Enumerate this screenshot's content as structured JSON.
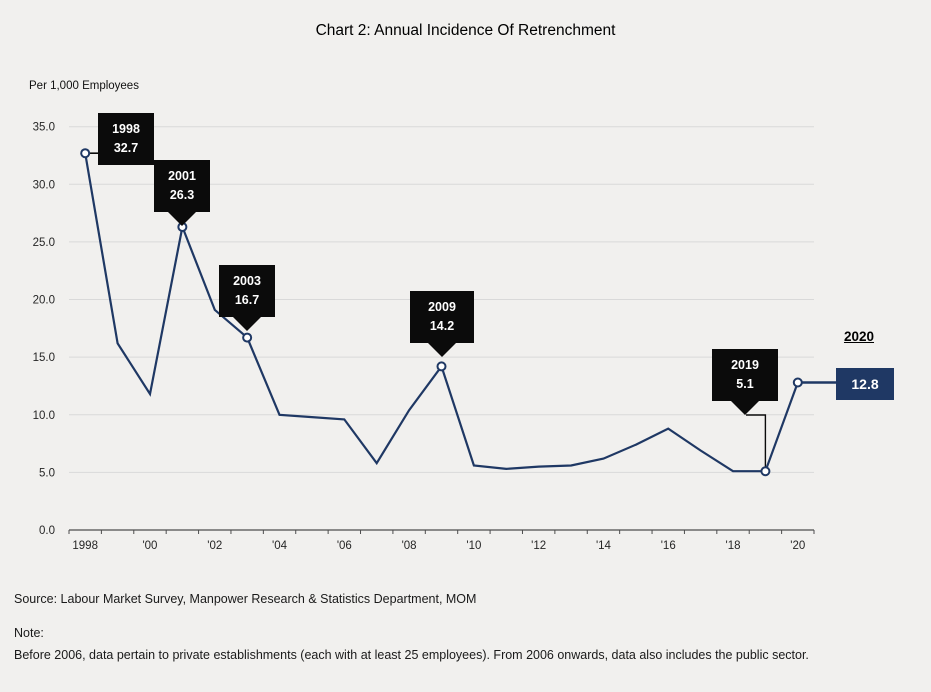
{
  "title": "Chart 2: Annual Incidence Of Retrenchment",
  "chart_data": {
    "type": "line",
    "title": "Chart 2: Annual Incidence Of Retrenchment",
    "ylabel": "Per 1,000 Employees",
    "xlabel": "",
    "ylim": [
      0,
      35
    ],
    "ytick_interval": 5,
    "grid": true,
    "legend_position": "none",
    "line_color": "#1F3864",
    "x": [
      1998,
      1999,
      2000,
      2001,
      2002,
      2003,
      2004,
      2005,
      2006,
      2007,
      2008,
      2009,
      2010,
      2011,
      2012,
      2013,
      2014,
      2015,
      2016,
      2017,
      2018,
      2019,
      2020
    ],
    "values": [
      32.7,
      16.2,
      11.8,
      26.3,
      19.1,
      16.7,
      10.0,
      9.8,
      9.6,
      5.8,
      10.4,
      14.2,
      5.6,
      5.3,
      5.5,
      5.6,
      6.2,
      7.4,
      8.8,
      6.9,
      5.1,
      5.1,
      12.8
    ],
    "xtick_labels": [
      "1998",
      "'00",
      "'02",
      "'04",
      "'06",
      "'08",
      "'10",
      "'12",
      "'14",
      "'16",
      "'18",
      "'20"
    ],
    "ytick_labels": [
      "0.0",
      "5.0",
      "10.0",
      "15.0",
      "20.0",
      "25.0",
      "30.0",
      "35.0"
    ],
    "marker_year_indices": [
      0,
      3,
      5,
      11,
      21,
      22
    ],
    "highlighted_points": [
      {
        "year": "1998",
        "value": "32.7"
      },
      {
        "year": "2001",
        "value": "26.3"
      },
      {
        "year": "2003",
        "value": "16.7"
      },
      {
        "year": "2009",
        "value": "14.2"
      },
      {
        "year": "2019",
        "value": "5.1"
      },
      {
        "year": "2020",
        "value": "12.8"
      }
    ]
  },
  "footer": {
    "source": "Source: Labour Market Survey, Manpower Research & Statistics Department, MOM",
    "note_label": "Note:",
    "note": "Before 2006, data pertain to private establishments (each with at least 25 employees). From 2006 onwards, data also includes the public sector."
  },
  "colors": {
    "background": "#F1F0EE",
    "line": "#1F3864",
    "callout_bg": "#0B0B0B",
    "callout_text": "#FFFFFF",
    "value_box_2020_bg": "#1F3864",
    "gridline": "#D9D9D9",
    "axis": "#4D4D4D"
  }
}
